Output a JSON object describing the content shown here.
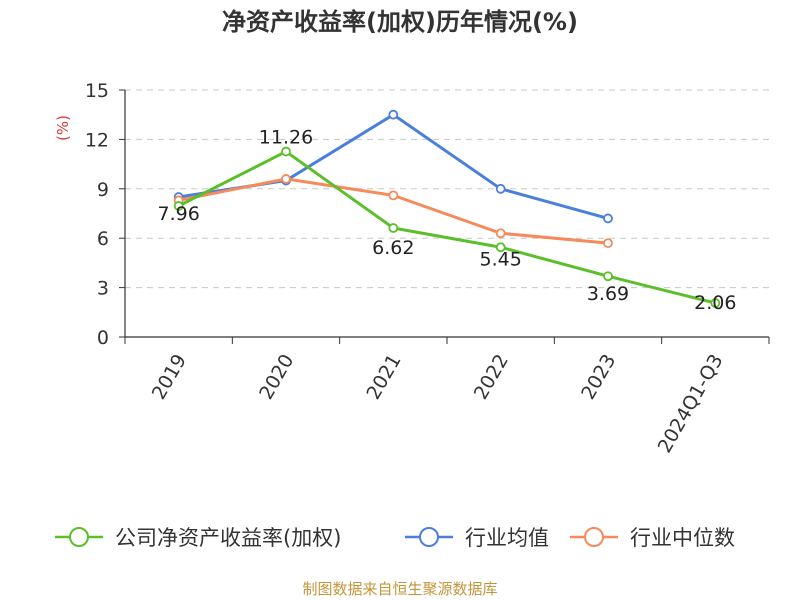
{
  "chart_data": {
    "type": "line",
    "title": "净资产收益率(加权)历年情况(%)",
    "ylabel": "(%)",
    "xlabel": "",
    "categories": [
      "2019",
      "2020",
      "2021",
      "2022",
      "2023",
      "2024Q1-Q3"
    ],
    "ylim": [
      0,
      15
    ],
    "yticks": [
      0,
      3,
      6,
      9,
      12,
      15
    ],
    "grid": true,
    "legend_position": "bottom",
    "series": [
      {
        "name": "公司净资产收益率(加权)",
        "color": "#5bbf2a",
        "values": [
          7.96,
          11.26,
          6.62,
          5.45,
          3.69,
          2.06
        ],
        "labels": true
      },
      {
        "name": "行业均值",
        "color": "#4a7fdc",
        "values": [
          8.5,
          9.5,
          13.5,
          9.0,
          7.2,
          null
        ],
        "labels": false
      },
      {
        "name": "行业中位数",
        "color": "#f58a5b",
        "values": [
          8.3,
          9.6,
          8.6,
          6.3,
          5.7,
          null
        ],
        "labels": false
      }
    ]
  },
  "source": "制图数据来自恒生聚源数据库"
}
